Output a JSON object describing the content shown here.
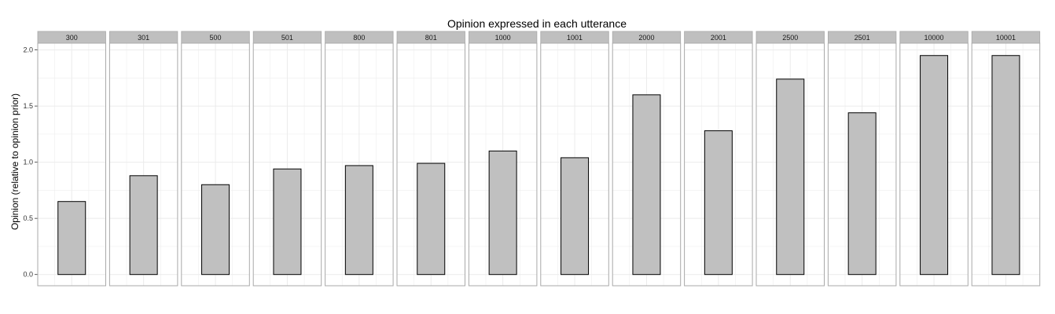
{
  "chart_data": {
    "type": "bar",
    "title": "Opinion expressed in each utterance",
    "xlabel": "",
    "ylabel": "Opinion (relative to opinion prior)",
    "ylim": [
      -0.1,
      2.06
    ],
    "yticks": [
      0.0,
      0.5,
      1.0,
      1.5,
      2.0
    ],
    "ytick_labels": [
      "0.0",
      "0.5",
      "1.0",
      "1.5",
      "2.0"
    ],
    "categories": [
      "300",
      "301",
      "500",
      "501",
      "800",
      "801",
      "1000",
      "1001",
      "2000",
      "2001",
      "2500",
      "2501",
      "10000",
      "10001"
    ],
    "values": [
      0.65,
      0.88,
      0.8,
      0.94,
      0.97,
      0.99,
      1.1,
      1.04,
      1.6,
      1.28,
      1.74,
      1.44,
      1.95,
      1.95
    ],
    "grid": true,
    "colors": {
      "bar_fill": "#c0c0c0",
      "bar_stroke": "#000000",
      "strip_fill": "#bfbfbf",
      "panel_border": "#a9a9a9",
      "grid": "#ebebeb"
    }
  }
}
